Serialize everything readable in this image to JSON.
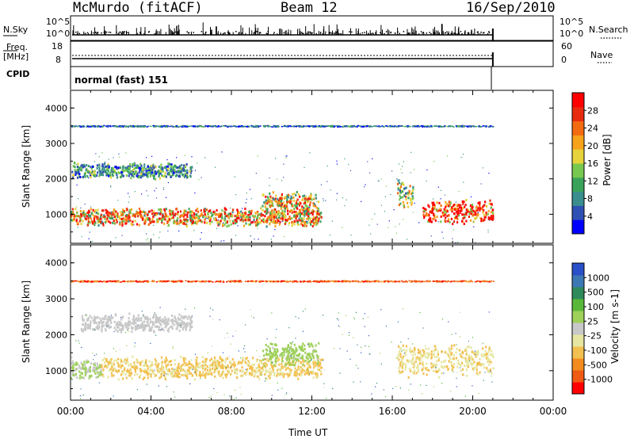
{
  "header": {
    "station": "McMurdo (fitACF)",
    "beam": "Beam 12",
    "date": "16/Sep/2010"
  },
  "strips": {
    "nsky_label": "N.Sky",
    "nsearch_label": "N.Search",
    "count_ticks": [
      "10^5",
      "10^0"
    ],
    "freq_label_line1": "Freq.",
    "freq_label_line2": "[MHz]",
    "freq_ticks": [
      "18",
      "8"
    ],
    "nave_label": "Nave",
    "nave_ticks": [
      "60",
      "0"
    ],
    "cpid_label": "CPID",
    "cpid_value": "normal (fast) 151"
  },
  "power_panel": {
    "ylabel": "Slant Range [km]",
    "yticks": [
      "4000",
      "3000",
      "2000",
      "1000"
    ],
    "colorbar_label": "Power [dB]",
    "colorbar_ticks": [
      "28",
      "24",
      "20",
      "16",
      "12",
      "8",
      "4"
    ],
    "colorbar_colors": [
      "#0000ff",
      "#2e4fb4",
      "#3a8e8e",
      "#3aa35a",
      "#77c84e",
      "#e6d23a",
      "#f7a21b",
      "#f26a12",
      "#e82a0e",
      "#ff0000"
    ]
  },
  "velocity_panel": {
    "ylabel": "Slant Range [km]",
    "yticks": [
      "4000",
      "3000",
      "2000",
      "1000"
    ],
    "colorbar_label": "Velocity  [m s-1]",
    "colorbar_ticks": [
      "1000",
      "500",
      "100",
      "25",
      "-25",
      "-100",
      "-500",
      "-1000"
    ],
    "colorbar_colors": [
      "#2a50c8",
      "#3c78b4",
      "#2e8a5a",
      "#58b83a",
      "#9ed05a",
      "#c8c8c8",
      "#e6e6a0",
      "#f2c050",
      "#f28c1e",
      "#f05a14",
      "#ff0000"
    ]
  },
  "xaxis": {
    "label": "Time UT",
    "ticks": [
      "00:00",
      "04:00",
      "08:00",
      "12:00",
      "16:00",
      "20:00",
      "00:00"
    ]
  },
  "chart_data": [
    {
      "type": "heatmap",
      "title": "Power",
      "xlabel": "Time UT",
      "ylabel": "Slant Range [km]",
      "xlim_hours": [
        0,
        24
      ],
      "ylim_km": [
        180,
        4500
      ],
      "data_end_hour": 21.0,
      "color_scale": {
        "label": "Power [dB]",
        "range": [
          0,
          30
        ]
      },
      "echo_regions": [
        {
          "t0": 0.0,
          "t1": 12.5,
          "r_center": 950,
          "r_width": 450,
          "level": 20
        },
        {
          "t0": 0.0,
          "t1": 6.0,
          "r_center": 2250,
          "r_width": 400,
          "level": 9
        },
        {
          "t0": 9.5,
          "t1": 12.3,
          "r_center": 1350,
          "r_width": 600,
          "level": 18
        },
        {
          "t0": 16.2,
          "t1": 17.0,
          "r_center": 1600,
          "r_width": 700,
          "level": 14
        },
        {
          "t0": 17.5,
          "t1": 21.0,
          "r_center": 1100,
          "r_width": 600,
          "level": 27
        },
        {
          "t0": 0.0,
          "t1": 21.0,
          "r_center": 3500,
          "r_width": 40,
          "level": 6
        }
      ]
    },
    {
      "type": "heatmap",
      "title": "Velocity",
      "xlabel": "Time UT",
      "ylabel": "Slant Range [km]",
      "xlim_hours": [
        0,
        24
      ],
      "ylim_km": [
        180,
        4500
      ],
      "data_end_hour": 21.0,
      "color_scale": {
        "label": "Velocity [m s-1]",
        "range": [
          -1000,
          1000
        ]
      },
      "echo_regions": [
        {
          "t0": 0.0,
          "t1": 1.5,
          "r_center": 1050,
          "r_width": 500,
          "level": 100
        },
        {
          "t0": 1.5,
          "t1": 12.5,
          "r_center": 1100,
          "r_width": 550,
          "level": -300
        },
        {
          "t0": 0.5,
          "t1": 6.0,
          "r_center": 2350,
          "r_width": 450,
          "level": 20
        },
        {
          "t0": 9.5,
          "t1": 12.3,
          "r_center": 1500,
          "r_width": 600,
          "level": 150
        },
        {
          "t0": 16.2,
          "t1": 21.0,
          "r_center": 1300,
          "r_width": 800,
          "level": -250
        },
        {
          "t0": 0.0,
          "t1": 21.0,
          "r_center": 3500,
          "r_width": 40,
          "level": -700
        }
      ]
    }
  ]
}
